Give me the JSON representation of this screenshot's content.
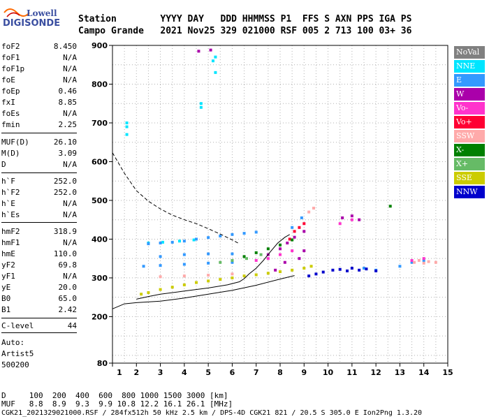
{
  "logo": {
    "line1": "Lowell",
    "line2": "DIGISONDE"
  },
  "header": {
    "row1": "Station        YYYY DAY   DDD HHMMSS P1  FFS S AXN PPS IGA PS",
    "row2": "Campo Grande   2021 Nov25 329 021000 RSF 005 2 713 100 03+ 36"
  },
  "params": [
    {
      "name": "foF2",
      "value": "8.450"
    },
    {
      "name": "foF1",
      "value": "N/A"
    },
    {
      "name": "foF1p",
      "value": "N/A"
    },
    {
      "name": "foE",
      "value": "N/A"
    },
    {
      "name": "foEp",
      "value": "0.46"
    },
    {
      "name": "fxI",
      "value": "8.85"
    },
    {
      "name": "foEs",
      "value": "N/A"
    },
    {
      "name": "fmin",
      "value": "2.25"
    },
    {
      "name": "MUF(D)",
      "value": "26.10"
    },
    {
      "name": "M(D)",
      "value": "3.09"
    },
    {
      "name": "D",
      "value": "N/A"
    },
    {
      "name": "h`F",
      "value": "252.0"
    },
    {
      "name": "h`F2",
      "value": "252.0"
    },
    {
      "name": "h`E",
      "value": "N/A"
    },
    {
      "name": "h`Es",
      "value": "N/A"
    },
    {
      "name": "hmF2",
      "value": "318.9"
    },
    {
      "name": "hmF1",
      "value": "N/A"
    },
    {
      "name": "hmE",
      "value": "110.0"
    },
    {
      "name": "yF2",
      "value": "69.8"
    },
    {
      "name": "yF1",
      "value": "N/A"
    },
    {
      "name": "yE",
      "value": "20.0"
    },
    {
      "name": "B0",
      "value": "65.0"
    },
    {
      "name": "B1",
      "value": "2.42"
    },
    {
      "name": "C-level",
      "value": "44"
    }
  ],
  "auto": {
    "label": "Auto:",
    "artist": "Artist5",
    "version": "500200"
  },
  "legend": [
    {
      "label": "NoVal",
      "color": "#808080"
    },
    {
      "label": "NNE",
      "color": "#00e5ff"
    },
    {
      "label": "E",
      "color": "#3399ff"
    },
    {
      "label": "W",
      "color": "#aa00aa"
    },
    {
      "label": "Vo-",
      "color": "#ff33cc"
    },
    {
      "label": "Vo+",
      "color": "#ff0033"
    },
    {
      "label": "SSW",
      "color": "#ffaaaa"
    },
    {
      "label": "X-",
      "color": "#008000"
    },
    {
      "label": "X+",
      "color": "#66bb66"
    },
    {
      "label": "SSE",
      "color": "#cccc00"
    },
    {
      "label": "NNW",
      "color": "#0000cc"
    }
  ],
  "footer": {
    "dist_row": "D     100  200  400  600  800 1000 1500 3000 [km]",
    "muf_row": "MUF   8.8  8.9  9.3  9.9 10.8 12.2 16.1 26.1 [MHz]",
    "file_row": "CGK21_2021329021000.RSF / 284fx512h 50 kHz 2.5 km / DPS-4D CGK21 821 / 20.5 S 305.0 E Ion2Png 1.3.20"
  },
  "chart_data": {
    "type": "scatter",
    "xlim": [
      1,
      15
    ],
    "ylim": [
      80,
      900
    ],
    "x_ticks": [
      1,
      2,
      3,
      4,
      5,
      6,
      7,
      8,
      9,
      10,
      11,
      12,
      13,
      14,
      15
    ],
    "y_ticks": [
      80,
      200,
      300,
      400,
      500,
      600,
      700,
      800,
      900
    ],
    "grid": true,
    "legend_position": "right",
    "series": [
      {
        "name": "NNE",
        "color": "#00e5ff",
        "points": [
          [
            1.6,
            700
          ],
          [
            1.6,
            690
          ],
          [
            1.6,
            670
          ],
          [
            4.7,
            750
          ],
          [
            4.7,
            740
          ],
          [
            5.3,
            830
          ],
          [
            5.2,
            860
          ],
          [
            5.3,
            870
          ],
          [
            2.5,
            390
          ],
          [
            3.1,
            392
          ],
          [
            3.8,
            395
          ],
          [
            4.4,
            398
          ]
        ]
      },
      {
        "name": "E",
        "color": "#3399ff",
        "points": [
          [
            2.5,
            388
          ],
          [
            3.0,
            390
          ],
          [
            3.5,
            392
          ],
          [
            4.0,
            395
          ],
          [
            4.5,
            400
          ],
          [
            5.0,
            404
          ],
          [
            5.5,
            408
          ],
          [
            6.0,
            412
          ],
          [
            6.5,
            415
          ],
          [
            7.0,
            418
          ],
          [
            2.3,
            330
          ],
          [
            3.0,
            332
          ],
          [
            4.0,
            335
          ],
          [
            5.0,
            338
          ],
          [
            6.0,
            340
          ],
          [
            3.0,
            355
          ],
          [
            4.0,
            360
          ],
          [
            5.0,
            362
          ],
          [
            6.0,
            362
          ],
          [
            8.5,
            430
          ],
          [
            8.9,
            455
          ],
          [
            13.0,
            330
          ],
          [
            13.5,
            340
          ],
          [
            14.0,
            345
          ],
          [
            12.0,
            320
          ],
          [
            11.5,
            325
          ]
        ]
      },
      {
        "name": "W",
        "color": "#aa00aa",
        "points": [
          [
            4.6,
            885
          ],
          [
            5.1,
            888
          ],
          [
            7.5,
            360
          ],
          [
            8.0,
            375
          ],
          [
            8.3,
            390
          ],
          [
            8.6,
            405
          ],
          [
            9.0,
            420
          ],
          [
            9.0,
            370
          ],
          [
            8.8,
            350
          ],
          [
            10.6,
            455
          ],
          [
            11.0,
            460
          ],
          [
            11.3,
            450
          ],
          [
            7.8,
            320
          ],
          [
            8.2,
            340
          ]
        ]
      },
      {
        "name": "Vo-",
        "color": "#ff33cc",
        "points": [
          [
            7.0,
            345
          ],
          [
            7.5,
            350
          ],
          [
            8.0,
            360
          ],
          [
            8.5,
            370
          ],
          [
            10.5,
            440
          ],
          [
            11.0,
            450
          ],
          [
            13.5,
            345
          ],
          [
            14.0,
            350
          ]
        ]
      },
      {
        "name": "Vo+",
        "color": "#ff0033",
        "points": [
          [
            8.4,
            400
          ],
          [
            8.6,
            420
          ],
          [
            8.8,
            430
          ],
          [
            9.0,
            440
          ]
        ]
      },
      {
        "name": "SSW",
        "color": "#ffaaaa",
        "points": [
          [
            13.6,
            340
          ],
          [
            13.8,
            345
          ],
          [
            14.0,
            338
          ],
          [
            14.2,
            342
          ],
          [
            14.5,
            340
          ],
          [
            3.0,
            303
          ],
          [
            4.0,
            305
          ],
          [
            5.0,
            307
          ],
          [
            6.0,
            310
          ],
          [
            9.2,
            470
          ],
          [
            9.4,
            480
          ]
        ]
      },
      {
        "name": "X-",
        "color": "#008000",
        "points": [
          [
            6.5,
            355
          ],
          [
            7.0,
            365
          ],
          [
            7.5,
            375
          ],
          [
            8.0,
            385
          ],
          [
            8.5,
            398
          ],
          [
            12.6,
            485
          ]
        ]
      },
      {
        "name": "X+",
        "color": "#66bb66",
        "points": [
          [
            5.5,
            340
          ],
          [
            6.0,
            345
          ],
          [
            6.6,
            350
          ],
          [
            7.2,
            360
          ]
        ]
      },
      {
        "name": "SSE",
        "color": "#cccc00",
        "points": [
          [
            2.2,
            258
          ],
          [
            2.5,
            262
          ],
          [
            3.0,
            270
          ],
          [
            3.5,
            276
          ],
          [
            4.0,
            282
          ],
          [
            4.5,
            288
          ],
          [
            5.0,
            292
          ],
          [
            5.5,
            296
          ],
          [
            6.0,
            300
          ],
          [
            6.5,
            305
          ],
          [
            7.0,
            308
          ],
          [
            7.5,
            312
          ],
          [
            8.0,
            316
          ],
          [
            8.5,
            320
          ],
          [
            9.0,
            325
          ],
          [
            9.3,
            330
          ]
        ]
      },
      {
        "name": "NNW",
        "color": "#0000cc",
        "points": [
          [
            9.2,
            305
          ],
          [
            9.5,
            310
          ],
          [
            9.8,
            315
          ],
          [
            10.2,
            320
          ],
          [
            10.5,
            322
          ],
          [
            10.8,
            318
          ],
          [
            11.0,
            325
          ],
          [
            11.3,
            320
          ],
          [
            11.6,
            323
          ],
          [
            12.0,
            318
          ]
        ]
      }
    ],
    "profile_curve": [
      [
        1.0,
        623
      ],
      [
        1.5,
        570
      ],
      [
        2.0,
        525
      ],
      [
        2.5,
        498
      ],
      [
        3.0,
        478
      ],
      [
        3.5,
        462
      ],
      [
        4.0,
        450
      ],
      [
        4.5,
        440
      ],
      [
        5.0,
        427
      ],
      [
        5.5,
        413
      ],
      [
        6.0,
        398
      ],
      [
        6.3,
        388
      ]
    ],
    "baseline_curve": [
      [
        1.0,
        220
      ],
      [
        1.5,
        233
      ],
      [
        2.0,
        236
      ],
      [
        3.0,
        240
      ],
      [
        4.0,
        248
      ],
      [
        5.0,
        258
      ],
      [
        6.0,
        268
      ],
      [
        7.0,
        281
      ],
      [
        8.0,
        297
      ],
      [
        8.6,
        306
      ]
    ],
    "trace_curve": [
      [
        2.0,
        245
      ],
      [
        2.5,
        252
      ],
      [
        3.0,
        258
      ],
      [
        4.0,
        266
      ],
      [
        5.0,
        274
      ],
      [
        5.8,
        282
      ],
      [
        6.3,
        290
      ],
      [
        6.5,
        298
      ],
      [
        6.7,
        310
      ],
      [
        7.0,
        325
      ],
      [
        7.3,
        345
      ],
      [
        7.6,
        368
      ],
      [
        7.9,
        390
      ],
      [
        8.2,
        405
      ],
      [
        8.4,
        412
      ]
    ]
  }
}
